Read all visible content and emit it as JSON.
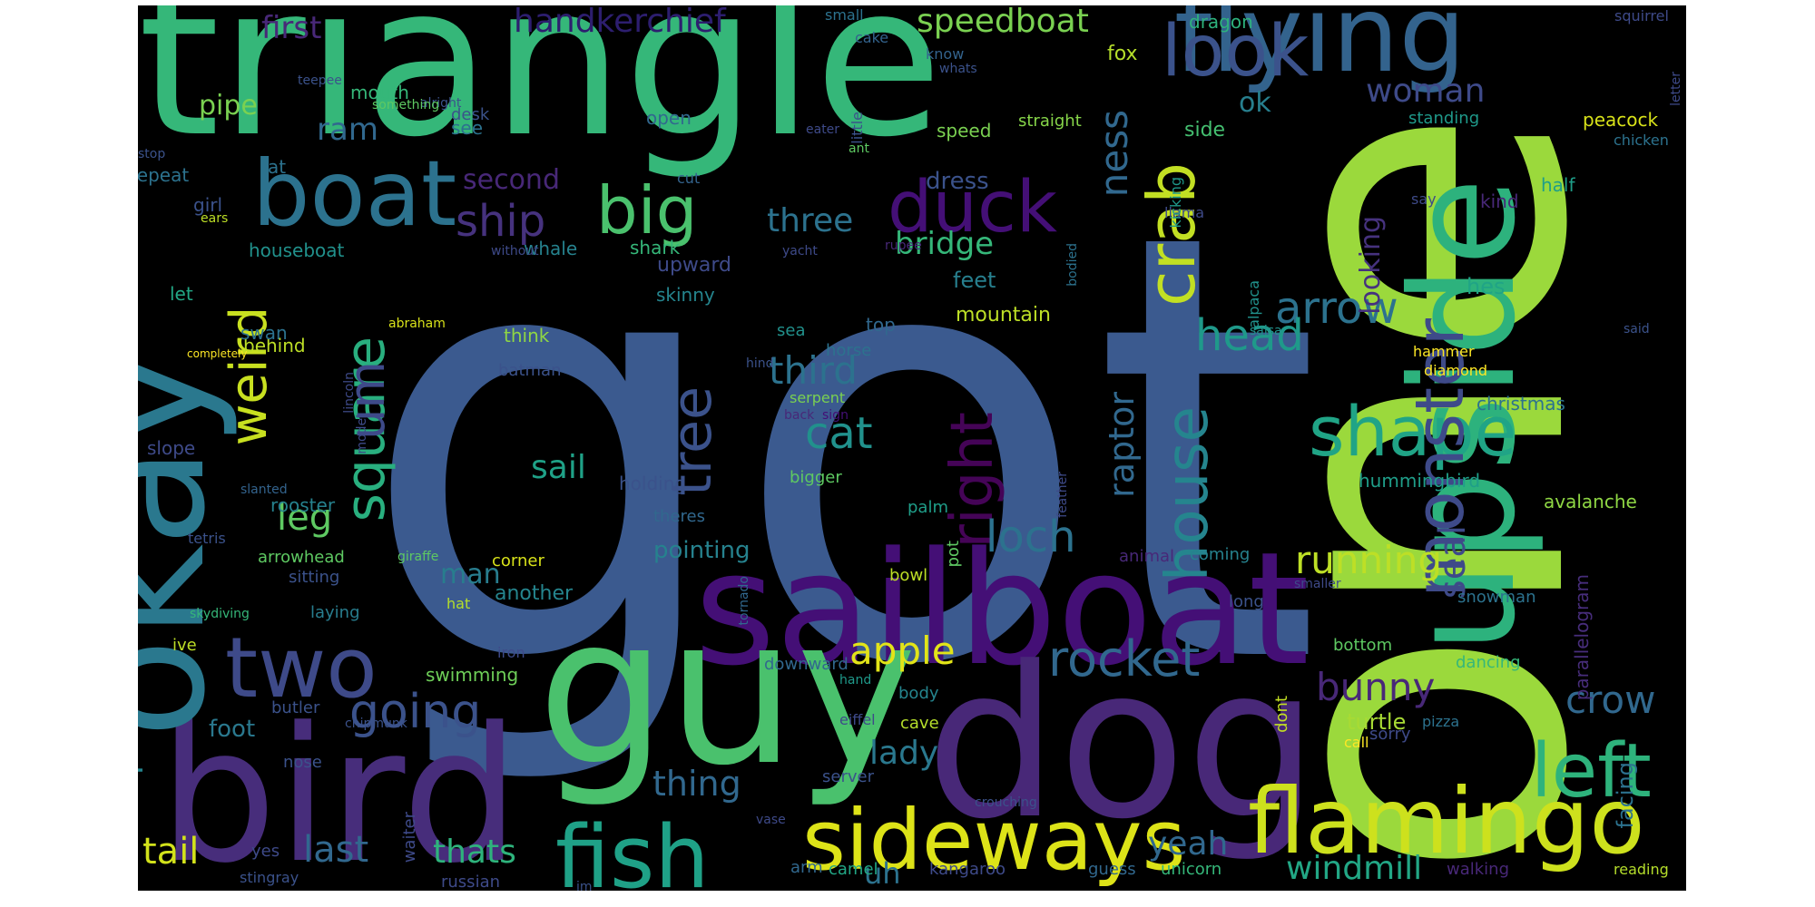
{
  "colors": {
    "background": "#000000",
    "palette": [
      "#440154",
      "#482878",
      "#3e4a89",
      "#31688e",
      "#26828e",
      "#1f9e89",
      "#35b779",
      "#6ece58",
      "#b5de2b",
      "#fde725"
    ]
  },
  "words": [
    {
      "text": "got",
      "color": "#3b5a8f",
      "orient": "h"
    },
    {
      "text": "one",
      "color": "#9bd93c",
      "orient": "v"
    },
    {
      "text": "triangle",
      "color": "#35b779",
      "orient": "h"
    },
    {
      "text": "sailboat",
      "color": "#440f76",
      "orient": "h"
    },
    {
      "text": "guy",
      "color": "#4ac16d",
      "orient": "h"
    },
    {
      "text": "dog",
      "color": "#482878",
      "orient": "h"
    },
    {
      "text": "bird",
      "color": "#472d7b",
      "orient": "h"
    },
    {
      "text": "okay",
      "color": "#2a788e",
      "orient": "v"
    },
    {
      "text": "upside",
      "color": "#2db27d",
      "orient": "v"
    },
    {
      "text": "flying",
      "color": "#33638d",
      "orient": "h"
    },
    {
      "text": "boat",
      "color": "#2c728e",
      "orient": "h"
    },
    {
      "text": "flamingo",
      "color": "#cde11d",
      "orient": "h"
    },
    {
      "text": "sideways",
      "color": "#dde318",
      "orient": "h"
    },
    {
      "text": "fish",
      "color": "#1fa187",
      "orient": "h"
    },
    {
      "text": "two",
      "color": "#3e4a89",
      "orient": "h"
    },
    {
      "text": "look",
      "color": "#3b528b",
      "orient": "h"
    },
    {
      "text": "duck",
      "color": "#440f76",
      "orient": "h"
    },
    {
      "text": "big",
      "color": "#4ac16d",
      "orient": "h"
    },
    {
      "text": "shape",
      "color": "#20a486",
      "orient": "h"
    },
    {
      "text": "monster",
      "color": "#3e4a89",
      "orient": "v"
    },
    {
      "text": "left",
      "color": "#2eb37c",
      "orient": "h"
    },
    {
      "text": "crab",
      "color": "#c2df23",
      "orient": "v"
    },
    {
      "text": "square",
      "color": "#29af7f",
      "orient": "v"
    },
    {
      "text": "house",
      "color": "#25858e",
      "orient": "v"
    },
    {
      "text": "right",
      "color": "#450457",
      "orient": "v"
    },
    {
      "text": "tree",
      "color": "#3b528b",
      "orient": "v"
    },
    {
      "text": "weird",
      "color": "#c8e020",
      "orient": "v"
    },
    {
      "text": "um",
      "color": "#3e4a89",
      "orient": "v"
    },
    {
      "text": "going",
      "color": "#3b528b",
      "orient": "h"
    },
    {
      "text": "rocket",
      "color": "#31688e",
      "orient": "h"
    },
    {
      "text": "arrow",
      "color": "#2c728e",
      "orient": "h"
    },
    {
      "text": "head",
      "color": "#1f998a",
      "orient": "h"
    },
    {
      "text": "ship",
      "color": "#46327e",
      "orient": "h"
    },
    {
      "text": "loch",
      "color": "#2c728e",
      "orient": "h"
    },
    {
      "text": "cat",
      "color": "#21918c",
      "orient": "h"
    },
    {
      "text": "apple",
      "color": "#e2e418",
      "orient": "h"
    },
    {
      "text": "running",
      "color": "#bddf26",
      "orient": "h"
    },
    {
      "text": "crow",
      "color": "#31688e",
      "orient": "h"
    },
    {
      "text": "bunny",
      "color": "#482878",
      "orient": "h"
    },
    {
      "text": "ness",
      "color": "#31688e",
      "orient": "v"
    },
    {
      "text": "third",
      "color": "#2c728e",
      "orient": "h"
    },
    {
      "text": "three",
      "color": "#2c728e",
      "orient": "h"
    },
    {
      "text": "last",
      "color": "#31688e",
      "orient": "h"
    },
    {
      "text": "tail",
      "color": "#d2e21b",
      "orient": "h"
    },
    {
      "text": "leg",
      "color": "#5ec962",
      "orient": "h"
    },
    {
      "text": "seal",
      "color": "#3e4a89",
      "orient": "v"
    },
    {
      "text": "raptor",
      "color": "#31688e",
      "orient": "v"
    },
    {
      "text": "handkerchief",
      "color": "#2d1e6f",
      "orient": "h"
    },
    {
      "text": "speedboat",
      "color": "#7ad151",
      "orient": "h"
    },
    {
      "text": "woman",
      "color": "#3e4a89",
      "orient": "h"
    },
    {
      "text": "bridge",
      "color": "#35b779",
      "orient": "h"
    },
    {
      "text": "thing",
      "color": "#31688e",
      "orient": "h"
    },
    {
      "text": "lady",
      "color": "#2a788e",
      "orient": "h"
    },
    {
      "text": "thats",
      "color": "#2eb37c",
      "orient": "h"
    },
    {
      "text": "yeah",
      "color": "#31688e",
      "orient": "h"
    },
    {
      "text": "windmill",
      "color": "#22a785",
      "orient": "h"
    },
    {
      "text": "person",
      "color": "#25858e",
      "orient": "v"
    },
    {
      "text": "first",
      "color": "#482878",
      "orient": "h"
    },
    {
      "text": "ram",
      "color": "#31688e",
      "orient": "h"
    },
    {
      "text": "second",
      "color": "#482878",
      "orient": "h"
    },
    {
      "text": "looking",
      "color": "#46327e",
      "orient": "v"
    },
    {
      "text": "sail",
      "color": "#1fa187",
      "orient": "h"
    },
    {
      "text": "man",
      "color": "#287d8e",
      "orient": "h"
    },
    {
      "text": "uh",
      "color": "#2c728e",
      "orient": "h"
    },
    {
      "text": "pipe",
      "color": "#7ad151",
      "orient": "h"
    },
    {
      "text": "ok",
      "color": "#277f8e",
      "orient": "h"
    },
    {
      "text": "pointing",
      "color": "#26828e",
      "orient": "h"
    },
    {
      "text": "dress",
      "color": "#3b528b",
      "orient": "h"
    },
    {
      "text": "side",
      "color": "#44bf70",
      "orient": "h"
    },
    {
      "text": "mountain",
      "color": "#bddf26",
      "orient": "h"
    },
    {
      "text": "hummingbird",
      "color": "#1f9e89",
      "orient": "h"
    },
    {
      "text": "christmas",
      "color": "#2c728e",
      "orient": "h"
    },
    {
      "text": "avalanche",
      "color": "#8fd744",
      "orient": "h"
    },
    {
      "text": "parallelogram",
      "color": "#472d7b",
      "orient": "v"
    },
    {
      "text": "another",
      "color": "#25858e",
      "orient": "h"
    },
    {
      "text": "swimming",
      "color": "#6ece58",
      "orient": "h"
    },
    {
      "text": "foot",
      "color": "#2a788e",
      "orient": "h"
    },
    {
      "text": "turtle",
      "color": "#a8db34",
      "orient": "h"
    },
    {
      "text": "facing",
      "color": "#2c728e",
      "orient": "v"
    },
    {
      "text": "upward",
      "color": "#3e4a89",
      "orient": "h"
    },
    {
      "text": "feet",
      "color": "#277f8e",
      "orient": "h"
    },
    {
      "text": "hes",
      "color": "#20a486",
      "orient": "h"
    },
    {
      "text": "fox",
      "color": "#b5de2b",
      "orient": "h"
    },
    {
      "text": "dragon",
      "color": "#2db27d",
      "orient": "h"
    },
    {
      "text": "mouth",
      "color": "#35b779",
      "orient": "h"
    },
    {
      "text": "desk",
      "color": "#3b528b",
      "orient": "h"
    },
    {
      "text": "see",
      "color": "#2c728e",
      "orient": "h"
    },
    {
      "text": "open",
      "color": "#31688e",
      "orient": "h"
    },
    {
      "text": "speed",
      "color": "#7ad151",
      "orient": "h"
    },
    {
      "text": "straight",
      "color": "#86d549",
      "orient": "h"
    },
    {
      "text": "standing",
      "color": "#1f998a",
      "orient": "h"
    },
    {
      "text": "peacock",
      "color": "#d8e219",
      "orient": "h"
    },
    {
      "text": "fat",
      "color": "#2c728e",
      "orient": "h"
    },
    {
      "text": "repeat",
      "color": "#2c728e",
      "orient": "h"
    },
    {
      "text": "cut",
      "color": "#33638d",
      "orient": "h"
    },
    {
      "text": "girl",
      "color": "#3b528b",
      "orient": "h"
    },
    {
      "text": "houseboat",
      "color": "#21918c",
      "orient": "h"
    },
    {
      "text": "whale",
      "color": "#26828e",
      "orient": "h"
    },
    {
      "text": "shark",
      "color": "#35b779",
      "orient": "h"
    },
    {
      "text": "kind",
      "color": "#482878",
      "orient": "h"
    },
    {
      "text": "say",
      "color": "#3e4a89",
      "orient": "h"
    },
    {
      "text": "half",
      "color": "#1f9e89",
      "orient": "h"
    },
    {
      "text": "skinny",
      "color": "#25858e",
      "orient": "h"
    },
    {
      "text": "top",
      "color": "#31688e",
      "orient": "h"
    },
    {
      "text": "sea",
      "color": "#21918c",
      "orient": "h"
    },
    {
      "text": "horse",
      "color": "#2c728e",
      "orient": "h"
    },
    {
      "text": "let",
      "color": "#22a785",
      "orient": "h"
    },
    {
      "text": "behind",
      "color": "#bddf26",
      "orient": "h"
    },
    {
      "text": "swan",
      "color": "#2c728e",
      "orient": "h"
    },
    {
      "text": "think",
      "color": "#8fd744",
      "orient": "h"
    },
    {
      "text": "batman",
      "color": "#3b528b",
      "orient": "h"
    },
    {
      "text": "hammer",
      "color": "#fde725",
      "orient": "h"
    },
    {
      "text": "diamond",
      "color": "#fde725",
      "orient": "h"
    },
    {
      "text": "serpent",
      "color": "#7ad151",
      "orient": "h"
    },
    {
      "text": "slope",
      "color": "#3e4a89",
      "orient": "h"
    },
    {
      "text": "holding",
      "color": "#3b528b",
      "orient": "h"
    },
    {
      "text": "bigger",
      "color": "#5ec962",
      "orient": "h"
    },
    {
      "text": "rooster",
      "color": "#26828e",
      "orient": "h"
    },
    {
      "text": "palm",
      "color": "#1f9e89",
      "orient": "h"
    },
    {
      "text": "theres",
      "color": "#31688e",
      "orient": "h"
    },
    {
      "text": "arrowhead",
      "color": "#5ec962",
      "orient": "h"
    },
    {
      "text": "sitting",
      "color": "#3b528b",
      "orient": "h"
    },
    {
      "text": "corner",
      "color": "#d8e219",
      "orient": "h"
    },
    {
      "text": "animal",
      "color": "#482878",
      "orient": "h"
    },
    {
      "text": "coming",
      "color": "#26828e",
      "orient": "h"
    },
    {
      "text": "pot",
      "color": "#5ec962",
      "orient": "v"
    },
    {
      "text": "bowl",
      "color": "#bddf26",
      "orient": "h"
    },
    {
      "text": "laying",
      "color": "#287d8e",
      "orient": "h"
    },
    {
      "text": "long",
      "color": "#3b528b",
      "orient": "h"
    },
    {
      "text": "snowman",
      "color": "#2c728e",
      "orient": "h"
    },
    {
      "text": "ive",
      "color": "#bddf26",
      "orient": "h"
    },
    {
      "text": "downward",
      "color": "#31688e",
      "orient": "h"
    },
    {
      "text": "bottom",
      "color": "#5ec962",
      "orient": "h"
    },
    {
      "text": "dancing",
      "color": "#35b779",
      "orient": "h"
    },
    {
      "text": "butler",
      "color": "#3b528b",
      "orient": "h"
    },
    {
      "text": "body",
      "color": "#25858e",
      "orient": "h"
    },
    {
      "text": "cave",
      "color": "#b5de2b",
      "orient": "h"
    },
    {
      "text": "dont",
      "color": "#c2df23",
      "orient": "v"
    },
    {
      "text": "sorry",
      "color": "#3e4a89",
      "orient": "h"
    },
    {
      "text": "server",
      "color": "#3b528b",
      "orient": "h"
    },
    {
      "text": "nose",
      "color": "#3b528b",
      "orient": "h"
    },
    {
      "text": "waiter",
      "color": "#3e4a89",
      "orient": "v"
    },
    {
      "text": "yes",
      "color": "#3e4a89",
      "orient": "h"
    },
    {
      "text": "arm",
      "color": "#31688e",
      "orient": "h"
    },
    {
      "text": "camel",
      "color": "#22a785",
      "orient": "h"
    },
    {
      "text": "kangaroo",
      "color": "#3e4a89",
      "orient": "h"
    },
    {
      "text": "guess",
      "color": "#31688e",
      "orient": "h"
    },
    {
      "text": "unicorn",
      "color": "#35b779",
      "orient": "h"
    },
    {
      "text": "walking",
      "color": "#482878",
      "orient": "h"
    },
    {
      "text": "reading",
      "color": "#b5de2b",
      "orient": "h"
    },
    {
      "text": "russian",
      "color": "#3e4a89",
      "orient": "h"
    },
    {
      "text": "stingray",
      "color": "#3b528b",
      "orient": "h"
    },
    {
      "text": "small",
      "color": "#2c728e",
      "orient": "h"
    },
    {
      "text": "know",
      "color": "#33638d",
      "orient": "h"
    },
    {
      "text": "whats",
      "color": "#3b528b",
      "orient": "h"
    },
    {
      "text": "cake",
      "color": "#33638d",
      "orient": "h"
    },
    {
      "text": "little",
      "color": "#3b528b",
      "orient": "v"
    },
    {
      "text": "eater",
      "color": "#3e4a89",
      "orient": "h"
    },
    {
      "text": "ant",
      "color": "#5ec962",
      "orient": "h"
    },
    {
      "text": "squirrel",
      "color": "#3e4a89",
      "orient": "h"
    },
    {
      "text": "letter",
      "color": "#3e4a89",
      "orient": "v"
    },
    {
      "text": "chicken",
      "color": "#2c728e",
      "orient": "h"
    },
    {
      "text": "teepee",
      "color": "#3b528b",
      "orient": "h"
    },
    {
      "text": "alright",
      "color": "#3b528b",
      "orient": "h"
    },
    {
      "text": "something",
      "color": "#5ec962",
      "orient": "h"
    },
    {
      "text": "stop",
      "color": "#3b528b",
      "orient": "h"
    },
    {
      "text": "ears",
      "color": "#bddf26",
      "orient": "h"
    },
    {
      "text": "without",
      "color": "#3e4a89",
      "orient": "h"
    },
    {
      "text": "yacht",
      "color": "#3e4a89",
      "orient": "h"
    },
    {
      "text": "rupee",
      "color": "#482878",
      "orient": "h"
    },
    {
      "text": "bodied",
      "color": "#2c728e",
      "orient": "v"
    },
    {
      "text": "alpaca",
      "color": "#21918c",
      "orient": "v"
    },
    {
      "text": "llama",
      "color": "#3e4a89",
      "orient": "h"
    },
    {
      "text": "kicking",
      "color": "#1f998a",
      "orient": "v"
    },
    {
      "text": "abraham",
      "color": "#d8e219",
      "orient": "h"
    },
    {
      "text": "completely",
      "color": "#fde725",
      "orient": "h"
    },
    {
      "text": "lincoln",
      "color": "#3e4a89",
      "orient": "v"
    },
    {
      "text": "hind",
      "color": "#3b528b",
      "orient": "h"
    },
    {
      "text": "said",
      "color": "#3b528b",
      "orient": "h"
    },
    {
      "text": "salsa",
      "color": "#21918c",
      "orient": "h"
    },
    {
      "text": "model",
      "color": "#3e4a89",
      "orient": "v"
    },
    {
      "text": "back",
      "color": "#482878",
      "orient": "h"
    },
    {
      "text": "sign",
      "color": "#440f76",
      "orient": "h"
    },
    {
      "text": "slanted",
      "color": "#33638d",
      "orient": "h"
    },
    {
      "text": "feather",
      "color": "#3e4a89",
      "orient": "v"
    },
    {
      "text": "tetris",
      "color": "#3b528b",
      "orient": "h"
    },
    {
      "text": "giraffe",
      "color": "#5ec962",
      "orient": "h"
    },
    {
      "text": "tornado",
      "color": "#31688e",
      "orient": "v"
    },
    {
      "text": "smaller",
      "color": "#3e4a89",
      "orient": "h"
    },
    {
      "text": "hat",
      "color": "#b5de2b",
      "orient": "h"
    },
    {
      "text": "skydiving",
      "color": "#35b779",
      "orient": "h"
    },
    {
      "text": "iron",
      "color": "#3e4a89",
      "orient": "h"
    },
    {
      "text": "hand",
      "color": "#1f998a",
      "orient": "h"
    },
    {
      "text": "eiffel",
      "color": "#3e4a89",
      "orient": "h"
    },
    {
      "text": "pizza",
      "color": "#2c728e",
      "orient": "h"
    },
    {
      "text": "call",
      "color": "#fde725",
      "orient": "h"
    },
    {
      "text": "chipmunk",
      "color": "#3b528b",
      "orient": "h"
    },
    {
      "text": "crouching",
      "color": "#3b528b",
      "orient": "h"
    },
    {
      "text": "vase",
      "color": "#3e4a89",
      "orient": "h"
    },
    {
      "text": "im",
      "color": "#3b528b",
      "orient": "h"
    }
  ]
}
